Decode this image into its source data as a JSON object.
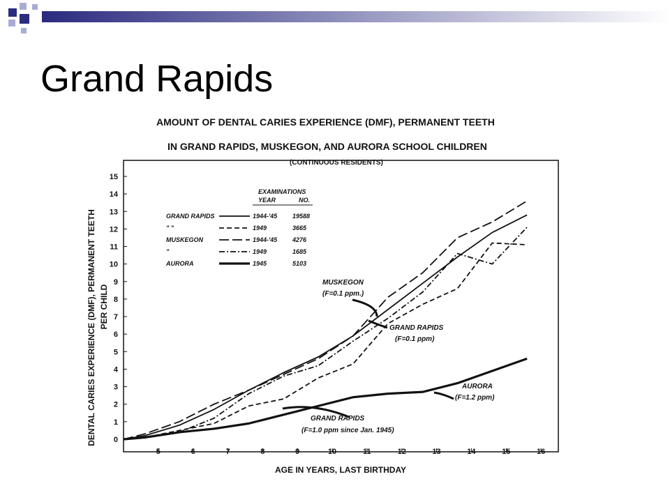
{
  "slide": {
    "title": "Grand Rapids"
  },
  "colors": {
    "accent_dark": "#2b2b80",
    "accent_light": "#a8acd4",
    "ink": "#111111"
  },
  "chart_data": {
    "type": "line",
    "title": "AMOUNT OF DENTAL CARIES EXPERIENCE (DMF), PERMANENT TEETH",
    "title2": "IN GRAND RAPIDS, MUSKEGON, AND AURORA SCHOOL CHILDREN",
    "subtitle": "(CONTINUOUS RESIDENTS)",
    "xlabel": "AGE IN YEARS, LAST BIRTHDAY",
    "ylabel": "DENTAL CARIES EXPERIENCE (DMF), PERMANENT TEETH",
    "ylabel2": "PER CHILD",
    "x_ticks": [
      "5",
      "6",
      "7",
      "8",
      "9",
      "10",
      "11",
      "12",
      "13",
      "14",
      "15",
      "16"
    ],
    "y_ticks": [
      "0",
      "1",
      "2",
      "3",
      "4",
      "5",
      "6",
      "7",
      "8",
      "9",
      "10",
      "11",
      "12",
      "13",
      "14",
      "15"
    ],
    "xlim": [
      4,
      16.5
    ],
    "ylim": [
      0,
      16
    ],
    "grid": false,
    "legend": {
      "position": "top-left",
      "header": "EXAMINATIONS",
      "col_year": "YEAR",
      "col_no": "NO.",
      "rows": [
        {
          "group": "GRAND RAPIDS",
          "year": "1944-'45",
          "no": "19588"
        },
        {
          "group": "\"       \"",
          "year": "1949",
          "no": "3665"
        },
        {
          "group": "MUSKEGON",
          "year": "1944-'45",
          "no": "4276"
        },
        {
          "group": "\"",
          "year": "1949",
          "no": "1685"
        },
        {
          "group": "AURORA",
          "year": "1945",
          "no": "5103"
        }
      ]
    },
    "series": [
      {
        "name": "GRAND RAPIDS 1944-'45",
        "style": "solid",
        "x": [
          4,
          4.6,
          5.6,
          6.6,
          7.6,
          8.6,
          9.6,
          10.6,
          11.6,
          12.6,
          13.6,
          14.6,
          15.6
        ],
        "y": [
          0,
          0.2,
          0.8,
          1.7,
          2.8,
          3.8,
          4.7,
          5.9,
          7.4,
          8.9,
          10.4,
          11.8,
          12.8
        ]
      },
      {
        "name": "GRAND RAPIDS 1949",
        "style": "dashed",
        "x": [
          4,
          4.6,
          5.6,
          6.6,
          7.6,
          8.6,
          9.6,
          10.6,
          11.6,
          12.6,
          13.6,
          14.6,
          15.6
        ],
        "y": [
          0,
          0.1,
          0.5,
          0.9,
          1.9,
          2.3,
          3.5,
          4.3,
          6.6,
          7.7,
          8.6,
          11.2,
          11.1
        ]
      },
      {
        "name": "MUSKEGON 1944-'45",
        "style": "longdash",
        "x": [
          4,
          4.6,
          5.6,
          6.6,
          7.6,
          8.6,
          9.6,
          10.6,
          11.6,
          12.6,
          13.6,
          14.6,
          15.6
        ],
        "y": [
          0,
          0.3,
          1.0,
          2.0,
          2.8,
          3.7,
          4.6,
          5.9,
          8.1,
          9.5,
          11.5,
          12.4,
          13.6
        ]
      },
      {
        "name": "MUSKEGON 1949",
        "style": "dashdot",
        "x": [
          4,
          4.6,
          5.6,
          6.6,
          7.6,
          8.6,
          9.6,
          10.6,
          11.6,
          12.6,
          13.6,
          14.6,
          15.6
        ],
        "y": [
          0,
          0.1,
          0.4,
          1.2,
          2.6,
          3.6,
          4.2,
          5.6,
          6.9,
          8.4,
          10.6,
          10.0,
          12.1
        ]
      },
      {
        "name": "AURORA 1945",
        "style": "thick",
        "x": [
          4,
          4.6,
          5.6,
          6.6,
          7.6,
          8.6,
          9.6,
          10.6,
          11.6,
          12.6,
          13.6,
          14.6,
          15.6
        ],
        "y": [
          0,
          0.1,
          0.4,
          0.6,
          0.9,
          1.4,
          1.9,
          2.4,
          2.6,
          2.7,
          3.2,
          3.9,
          4.6
        ]
      }
    ],
    "annotations": [
      {
        "id": "muskegon",
        "line1": "MUSKEGON",
        "line2": "(F=0.1 ppm.)"
      },
      {
        "id": "grand-rapids-01",
        "line1": "GRAND RAPIDS",
        "line2": "(F=0.1 ppm)"
      },
      {
        "id": "aurora",
        "line1": "AURORA",
        "line2": "(F=1.2 ppm)"
      },
      {
        "id": "grand-rapids-10",
        "line1": "GRAND RAPIDS",
        "line2": "(F=1.0 ppm since Jan. 1945)"
      }
    ]
  }
}
